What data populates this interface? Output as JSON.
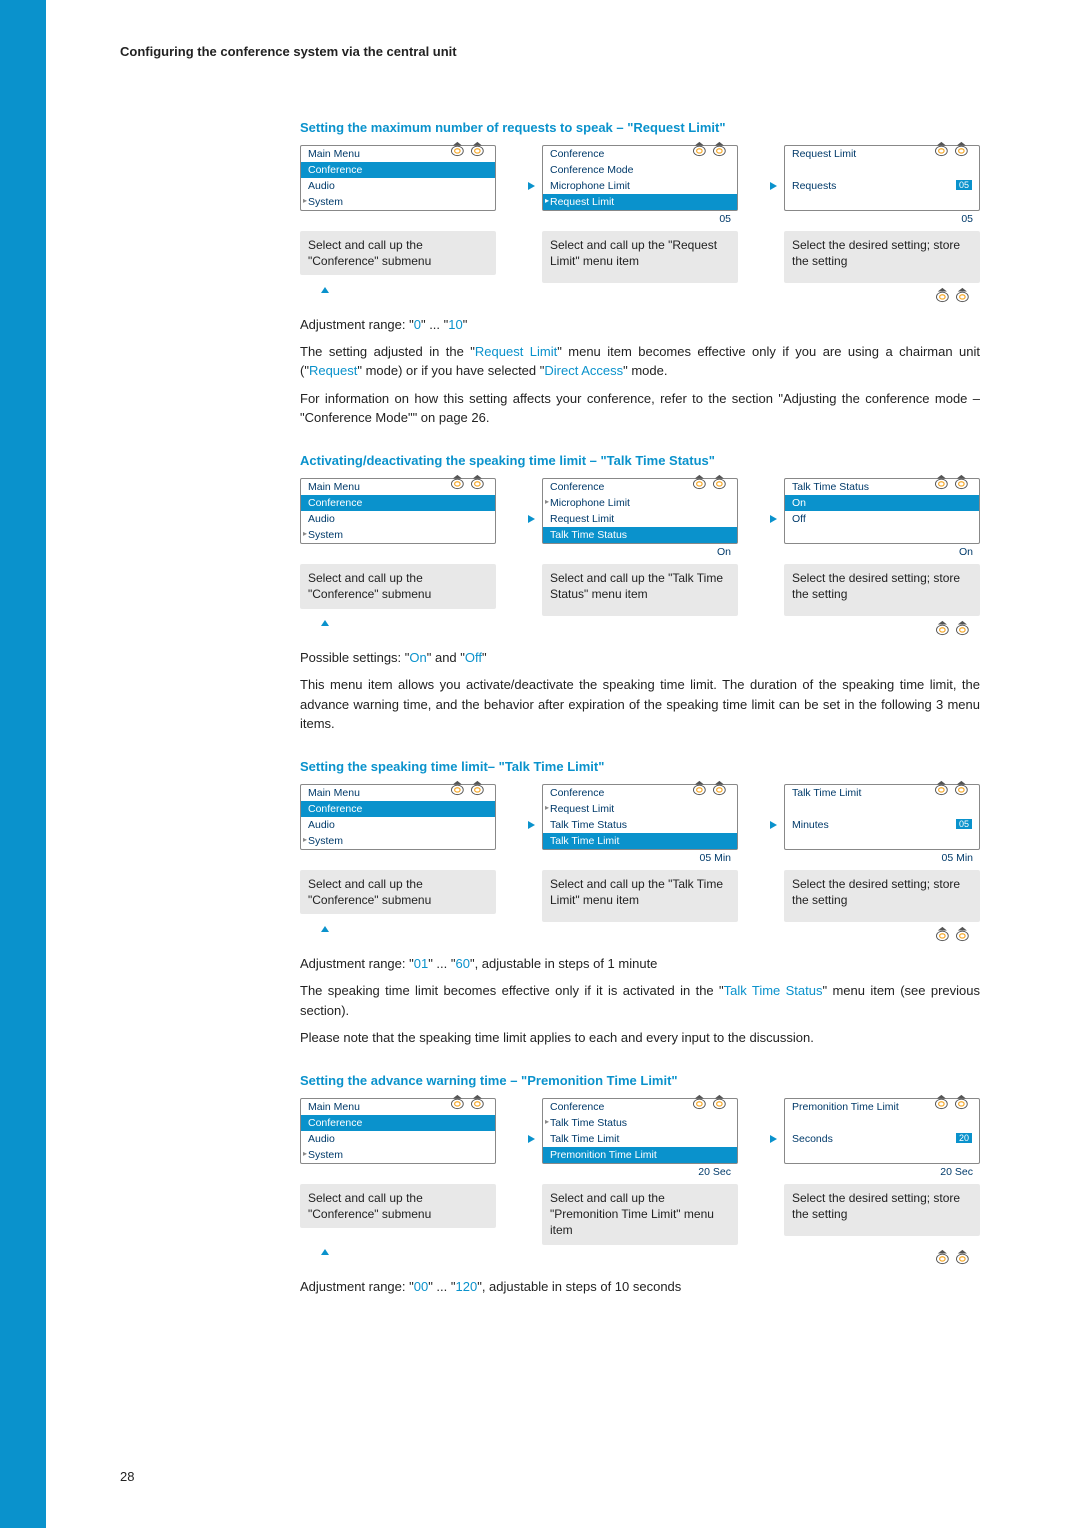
{
  "header": "Configuring the conference system via the central unit",
  "page_number": "28",
  "styles": {
    "accent": "#0a92cc",
    "grey": "#e8e8e8",
    "text": "#222",
    "menu_text": "#003a6a"
  },
  "sections": [
    {
      "title": "Setting the maximum number of requests to speak – \"Request Limit\"",
      "panels": {
        "p1": {
          "items": [
            "Main Menu",
            "Conference",
            "Audio",
            "System"
          ],
          "sel": 1,
          "carets": [
            3
          ],
          "instr": "Select and call up the \"Conference\" submenu"
        },
        "p2": {
          "items": [
            "Conference",
            "Conference Mode",
            "Microphone Limit",
            "Request Limit"
          ],
          "sel": 3,
          "carets": [
            3
          ],
          "lowval": "05",
          "instr": "Select and call up the \"Request Limit\" menu item"
        },
        "p3": {
          "items": [
            "Request Limit",
            "",
            "Requests"
          ],
          "rlabel": "Requests",
          "rval": "05",
          "lowval": "05",
          "instr": "Select the desired setting; store the setting"
        }
      },
      "body": [
        {
          "pre": "Adjustment range: \"",
          "hl1": "0",
          "mid": "\" ... \"",
          "hl2": "10",
          "post": "\""
        },
        {
          "text1": "The setting adjusted in the \"",
          "hlA": "Request Limit",
          "text2": "\" menu item becomes effective only if you are using a chairman unit (\"",
          "hlB": "Request",
          "text3": "\" mode) or if you have selected \"",
          "hlC": "Direct Access",
          "text4": "\" mode."
        },
        {
          "plain": "For information on how this setting affects your conference, refer to the section \"Adjusting the conference mode – \"Conference Mode\"\" on page 26."
        }
      ]
    },
    {
      "title": "Activating/deactivating the speaking time limit – \"Talk Time Status\"",
      "panels": {
        "p1": {
          "items": [
            "Main Menu",
            "Conference",
            "Audio",
            "System"
          ],
          "sel": 1,
          "carets": [
            3
          ],
          "instr": "Select and call up the \"Conference\" submenu"
        },
        "p2": {
          "items": [
            "Conference",
            "Microphone Limit",
            "Request Limit",
            "Talk Time Status"
          ],
          "sel": 3,
          "carets": [
            1
          ],
          "lowval": "On",
          "instr": "Select and call up the \"Talk Time Status\" menu item"
        },
        "p3": {
          "items": [
            "Talk Time Status",
            "On",
            "Off"
          ],
          "sel": 1,
          "lowval": "On",
          "instr": "Select the desired setting; store the setting"
        }
      },
      "body": [
        {
          "pre": "Possible settings: \"",
          "hl1": "On",
          "mid": "\" and \"",
          "hl2": "Off",
          "post": "\""
        },
        {
          "plain": "This menu item allows you activate/deactivate the speaking time limit. The duration of the speaking time limit, the advance warning time, and the behavior after expiration of the speaking time limit can be set in the following 3 menu items."
        }
      ]
    },
    {
      "title": "Setting the speaking time limit– \"Talk Time Limit\"",
      "panels": {
        "p1": {
          "items": [
            "Main Menu",
            "Conference",
            "Audio",
            "System"
          ],
          "sel": 1,
          "carets": [
            3
          ],
          "instr": "Select and call up the \"Conference\" submenu"
        },
        "p2": {
          "items": [
            "Conference",
            "Request Limit",
            "Talk Time Status",
            "Talk Time Limit"
          ],
          "sel": 3,
          "carets": [
            1
          ],
          "lowval": "05 Min",
          "instr": "Select and call up the \"Talk Time Limit\" menu item"
        },
        "p3": {
          "items": [
            "Talk Time Limit",
            "",
            "Minutes"
          ],
          "rlabel": "Minutes",
          "rval": "05",
          "lowval": "05 Min",
          "instr": "Select the desired setting; store the setting"
        }
      },
      "body": [
        {
          "pre": "Adjustment range: \"",
          "hl1": "01",
          "mid": "\" ... \"",
          "hl2": "60",
          "post": "\", adjustable in steps of 1 minute"
        },
        {
          "text1": "The speaking time limit becomes effective only if it is activated in the \"",
          "hlA": "Talk Time Status",
          "text2": "\" menu item (see previous section).",
          "hlB": "",
          "text3": "",
          "hlC": "",
          "text4": ""
        },
        {
          "plain": "Please note that the speaking time limit applies to each and every input to the discussion."
        }
      ]
    },
    {
      "title": "Setting the advance warning time – \"Premonition Time Limit\"",
      "panels": {
        "p1": {
          "items": [
            "Main Menu",
            "Conference",
            "Audio",
            "System"
          ],
          "sel": 1,
          "carets": [
            3
          ],
          "instr": "Select and call up the \"Conference\" submenu"
        },
        "p2": {
          "items": [
            "Conference",
            "Talk Time Status",
            "Talk Time Limit",
            "Premonition Time Limit"
          ],
          "sel": 3,
          "carets": [
            1
          ],
          "lowval": "20 Sec",
          "instr": "Select and call up the \"Premonition Time Limit\" menu item"
        },
        "p3": {
          "items": [
            "Premonition Time Limit",
            "",
            "Seconds"
          ],
          "rlabel": "Seconds",
          "rval": "20",
          "lowval": "20 Sec",
          "instr": "Select the desired setting; store the setting"
        }
      },
      "body": [
        {
          "pre": "Adjustment range: \"",
          "hl1": "00",
          "mid": "\" ... \"",
          "hl2": "120",
          "post": "\", adjustable in steps of 10 seconds"
        }
      ]
    }
  ]
}
